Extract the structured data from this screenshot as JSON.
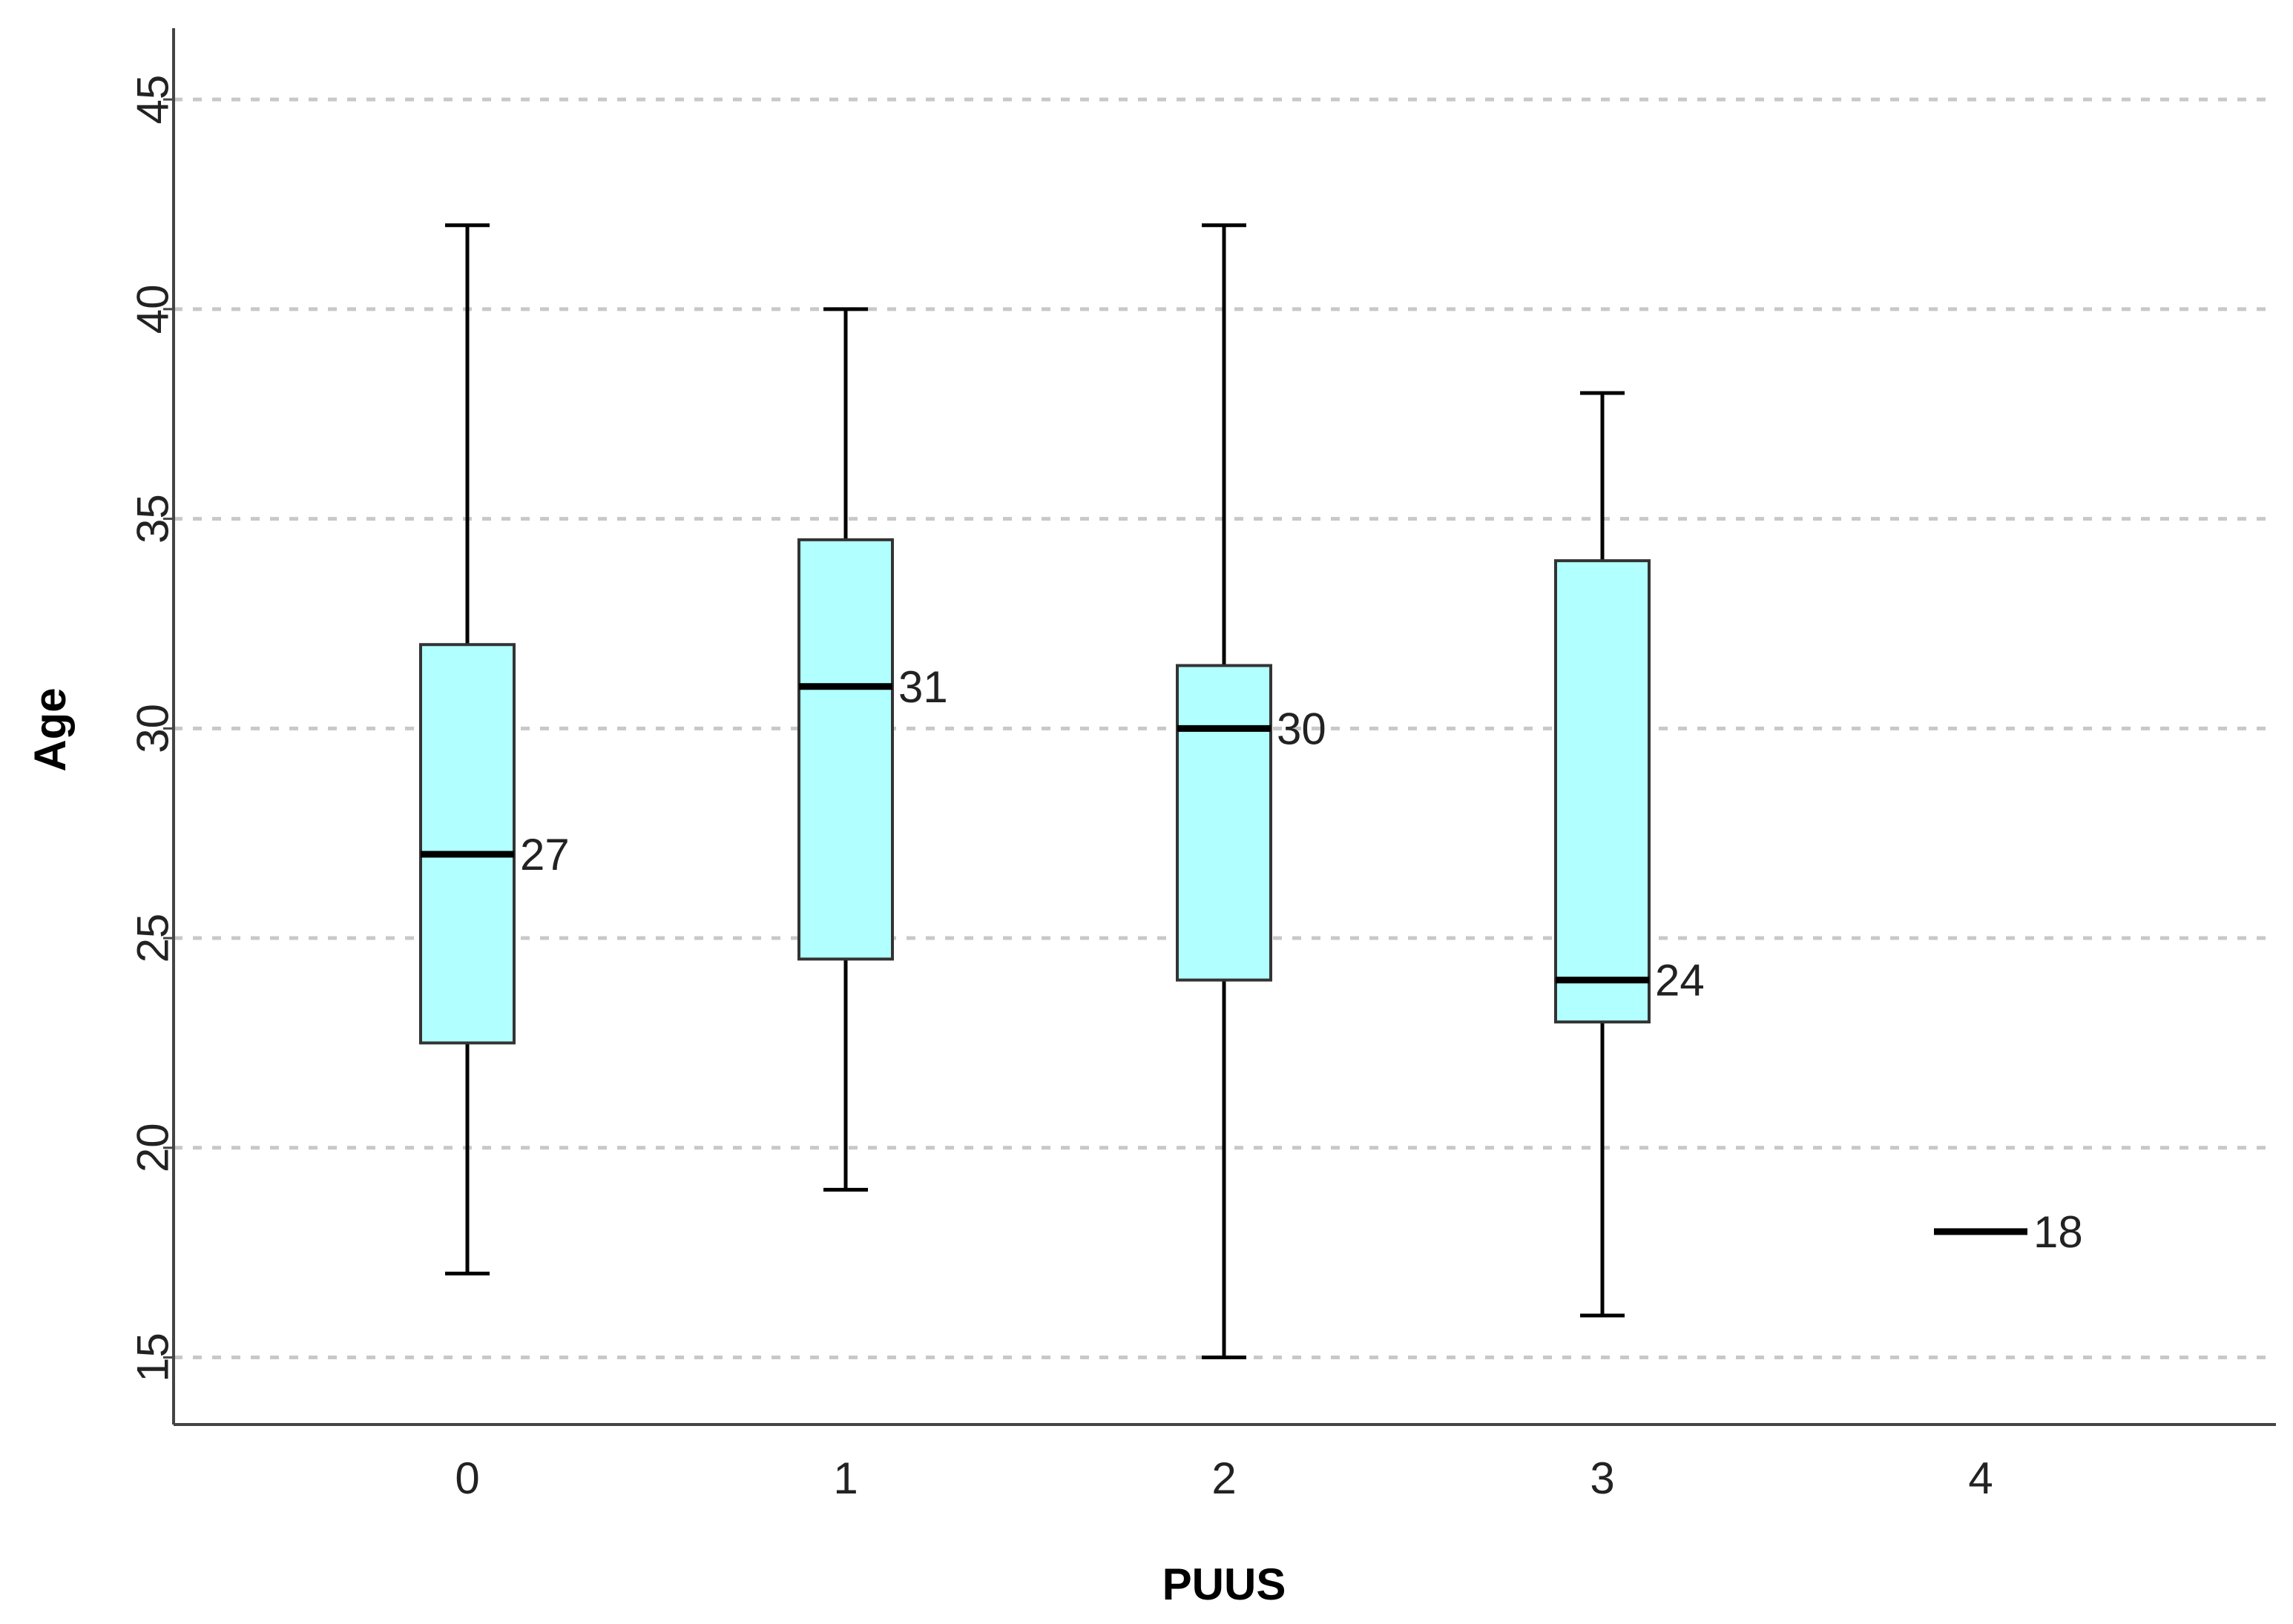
{
  "chart_data": {
    "type": "boxplot",
    "xlabel": "PUUS",
    "ylabel": "Age",
    "categories": [
      "0",
      "1",
      "2",
      "3",
      "4"
    ],
    "yticks": [
      15,
      20,
      25,
      30,
      35,
      40,
      45
    ],
    "ylim": [
      13.4,
      46.7
    ],
    "grid": true,
    "box_color": "#b2ffff",
    "boxes": [
      {
        "category": "0",
        "min": 17,
        "q1": 22.5,
        "median": 27,
        "q3": 32,
        "max": 42,
        "median_label": "27"
      },
      {
        "category": "1",
        "min": 19,
        "q1": 24.5,
        "median": 31,
        "q3": 34.5,
        "max": 40,
        "median_label": "31"
      },
      {
        "category": "2",
        "min": 15,
        "q1": 24,
        "median": 30,
        "q3": 31.5,
        "max": 42,
        "median_label": "30"
      },
      {
        "category": "3",
        "min": 16,
        "q1": 23,
        "median": 24,
        "q3": 34,
        "max": 38,
        "median_label": "24"
      },
      {
        "category": "4",
        "min": 18,
        "q1": 18,
        "median": 18,
        "q3": 18,
        "max": 18,
        "median_label": "18"
      }
    ]
  }
}
